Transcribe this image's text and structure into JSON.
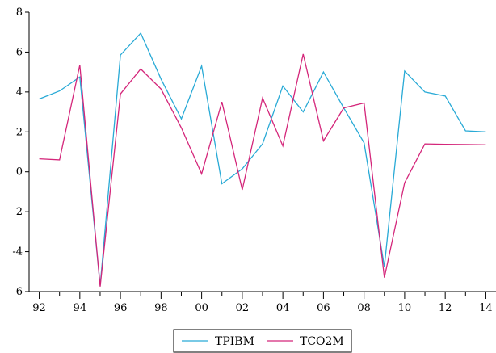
{
  "chart_data": {
    "type": "line",
    "x": [
      1992,
      1993,
      1994,
      1995,
      1996,
      1997,
      1998,
      1999,
      2000,
      2001,
      2002,
      2003,
      2004,
      2005,
      2006,
      2007,
      2008,
      2009,
      2010,
      2011,
      2012,
      2013,
      2014
    ],
    "xtick_values": [
      1992,
      1994,
      1996,
      1998,
      2000,
      2002,
      2004,
      2006,
      2008,
      2010,
      2012,
      2014
    ],
    "xtick_labels": [
      "92",
      "94",
      "96",
      "98",
      "00",
      "02",
      "04",
      "06",
      "08",
      "10",
      "12",
      "14"
    ],
    "xlim": [
      1991.5,
      2014.5
    ],
    "ylim": [
      -6,
      8
    ],
    "yticks": [
      -6,
      -4,
      -2,
      0,
      2,
      4,
      6,
      8
    ],
    "ytick_labels": [
      "-6",
      "-4",
      "-2",
      "0",
      "2",
      "4",
      "6",
      "8"
    ],
    "grid": false,
    "legend_position": "bottom-center",
    "series": [
      {
        "name": "TPIBM",
        "color": "#29aad6",
        "values": [
          3.65,
          4.05,
          4.75,
          -5.7,
          5.85,
          6.95,
          4.65,
          2.65,
          5.3,
          -0.6,
          0.15,
          1.4,
          4.3,
          3.0,
          5.0,
          3.2,
          1.45,
          -4.75,
          5.05,
          4.0,
          3.8,
          2.05,
          2.0
        ]
      },
      {
        "name": "TCO2M",
        "color": "#d4267a",
        "values": [
          0.65,
          0.6,
          5.35,
          -5.75,
          3.9,
          5.15,
          4.15,
          2.2,
          -0.1,
          3.5,
          -0.9,
          3.7,
          1.3,
          5.9,
          1.55,
          3.2,
          3.45,
          -5.3,
          -0.55,
          1.4,
          1.38,
          1.37,
          1.35
        ]
      }
    ]
  }
}
